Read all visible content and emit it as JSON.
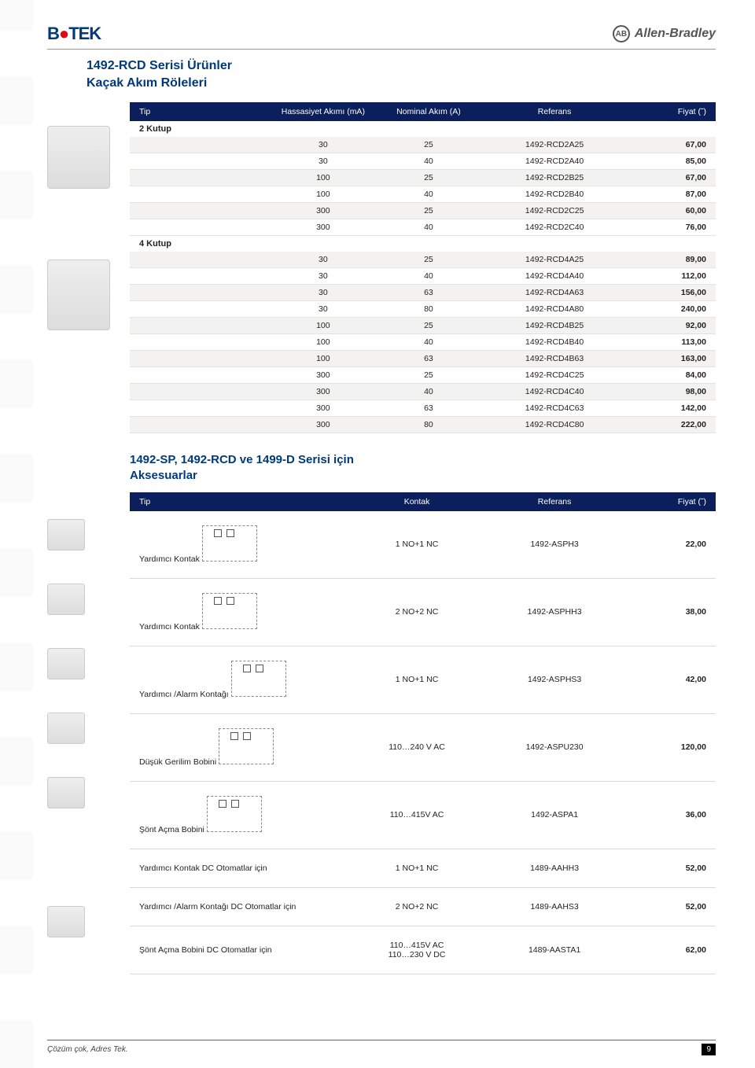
{
  "header": {
    "logo_left": "B●TEK",
    "ab_circle": "AB",
    "ab_label": "Allen-Bradley"
  },
  "section1": {
    "title_line1": "1492-RCD Serisi Ürünler",
    "title_line2": "Kaçak Akım Röleleri",
    "columns": {
      "tip": "Tip",
      "c1": "Hassasiyet Akımı (mA)",
      "c2": "Nominal Akım (A)",
      "c3": "Referans",
      "c4": "Fiyat (˜)"
    },
    "group1_label": "2 Kutup",
    "rows1": [
      {
        "a": "30",
        "b": "25",
        "ref": "1492-RCD2A25",
        "p": "67,00",
        "alt": true
      },
      {
        "a": "30",
        "b": "40",
        "ref": "1492-RCD2A40",
        "p": "85,00",
        "alt": false
      },
      {
        "a": "100",
        "b": "25",
        "ref": "1492-RCD2B25",
        "p": "67,00",
        "alt": true
      },
      {
        "a": "100",
        "b": "40",
        "ref": "1492-RCD2B40",
        "p": "87,00",
        "alt": false
      },
      {
        "a": "300",
        "b": "25",
        "ref": "1492-RCD2C25",
        "p": "60,00",
        "alt": true
      },
      {
        "a": "300",
        "b": "40",
        "ref": "1492-RCD2C40",
        "p": "76,00",
        "alt": false
      }
    ],
    "group2_label": "4 Kutup",
    "rows2": [
      {
        "a": "30",
        "b": "25",
        "ref": "1492-RCD4A25",
        "p": "89,00",
        "alt": true
      },
      {
        "a": "30",
        "b": "40",
        "ref": "1492-RCD4A40",
        "p": "112,00",
        "alt": false
      },
      {
        "a": "30",
        "b": "63",
        "ref": "1492-RCD4A63",
        "p": "156,00",
        "alt": true
      },
      {
        "a": "30",
        "b": "80",
        "ref": "1492-RCD4A80",
        "p": "240,00",
        "alt": false
      },
      {
        "a": "100",
        "b": "25",
        "ref": "1492-RCD4B25",
        "p": "92,00",
        "alt": true
      },
      {
        "a": "100",
        "b": "40",
        "ref": "1492-RCD4B40",
        "p": "113,00",
        "alt": false
      },
      {
        "a": "100",
        "b": "63",
        "ref": "1492-RCD4B63",
        "p": "163,00",
        "alt": true
      },
      {
        "a": "300",
        "b": "25",
        "ref": "1492-RCD4C25",
        "p": "84,00",
        "alt": false
      },
      {
        "a": "300",
        "b": "40",
        "ref": "1492-RCD4C40",
        "p": "98,00",
        "alt": true
      },
      {
        "a": "300",
        "b": "63",
        "ref": "1492-RCD4C63",
        "p": "142,00",
        "alt": false
      },
      {
        "a": "300",
        "b": "80",
        "ref": "1492-RCD4C80",
        "p": "222,00",
        "alt": true
      }
    ]
  },
  "section2": {
    "title_line1": "1492-SP, 1492-RCD ve 1499-D Serisi için",
    "title_line2": "Aksesuarlar",
    "columns": {
      "tip": "Tip",
      "kontak": "Kontak",
      "ref": "Referans",
      "fiyat": "Fiyat (˜)"
    },
    "rows": [
      {
        "tip": "Yardımcı Kontak",
        "kontak": "1 NO+1 NC",
        "ref": "1492-ASPH3",
        "p": "22,00",
        "icon": true,
        "diagram": true
      },
      {
        "tip": "Yardımcı Kontak",
        "kontak": "2 NO+2 NC",
        "ref": "1492-ASPHH3",
        "p": "38,00",
        "icon": true,
        "diagram": true
      },
      {
        "tip": "Yardımcı /Alarm Kontağı",
        "kontak": "1 NO+1 NC",
        "ref": "1492-ASPHS3",
        "p": "42,00",
        "icon": true,
        "diagram": true
      },
      {
        "tip": "Düşük Gerilim  Bobini",
        "kontak": "110…240 V  AC",
        "ref": "1492-ASPU230",
        "p": "120,00",
        "icon": true,
        "diagram": true
      },
      {
        "tip": "Şönt Açma Bobini",
        "kontak": "110…415V  AC",
        "ref": "1492-ASPA1",
        "p": "36,00",
        "icon": true,
        "diagram": true
      },
      {
        "tip": "Yardımcı Kontak DC Otomatlar için",
        "kontak": "1 NO+1 NC",
        "ref": "1489-AAHH3",
        "p": "52,00",
        "icon": false,
        "diagram": false
      },
      {
        "tip": "Yardımcı /Alarm Kontağı DC Otomatlar için",
        "kontak": "2 NO+2 NC",
        "ref": "1489-AAHS3",
        "p": "52,00",
        "icon": true,
        "diagram": false
      },
      {
        "tip": "Şönt Açma Bobini DC Otomatlar için",
        "kontak": "110…415V  AC\n110…230 V DC",
        "ref": "1489-AASTA1",
        "p": "62,00",
        "icon": false,
        "diagram": false
      }
    ]
  },
  "footer": {
    "left": "Çözüm çok, Adres Tek.",
    "page": "9"
  }
}
